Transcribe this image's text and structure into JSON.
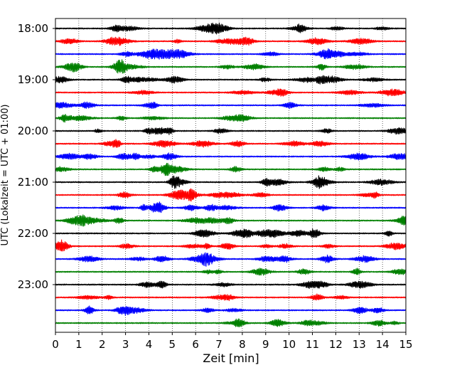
{
  "chart_data": {
    "type": "line",
    "title": "",
    "xlabel": "Zeit  [min]",
    "ylabel": "UTC (Lokalzeit = UTC + 01:00)",
    "xlim": [
      0,
      15
    ],
    "xticks": [
      0,
      1,
      2,
      3,
      4,
      5,
      6,
      7,
      8,
      9,
      10,
      11,
      12,
      13,
      14,
      15
    ],
    "xtick_labels": [
      "0",
      "1",
      "2",
      "3",
      "4",
      "5",
      "6",
      "7",
      "8",
      "9",
      "10",
      "11",
      "12",
      "13",
      "14",
      "15"
    ],
    "ytick_labels": [
      "18:00",
      "19:00",
      "20:00",
      "21:00",
      "22:00",
      "23:00"
    ],
    "row_minutes": 15,
    "start_time": "18:00",
    "grid": "vertical-dotted",
    "colors": [
      "#000000",
      "#ff0000",
      "#0000ff",
      "#008000"
    ],
    "series": [
      {
        "start": "18:00",
        "color": "#000000"
      },
      {
        "start": "18:15",
        "color": "#ff0000"
      },
      {
        "start": "18:30",
        "color": "#0000ff"
      },
      {
        "start": "18:45",
        "color": "#008000"
      },
      {
        "start": "19:00",
        "color": "#000000"
      },
      {
        "start": "19:15",
        "color": "#ff0000"
      },
      {
        "start": "19:30",
        "color": "#0000ff"
      },
      {
        "start": "19:45",
        "color": "#008000"
      },
      {
        "start": "20:00",
        "color": "#000000"
      },
      {
        "start": "20:15",
        "color": "#ff0000"
      },
      {
        "start": "20:30",
        "color": "#0000ff"
      },
      {
        "start": "20:45",
        "color": "#008000"
      },
      {
        "start": "21:00",
        "color": "#000000"
      },
      {
        "start": "21:15",
        "color": "#ff0000"
      },
      {
        "start": "21:30",
        "color": "#0000ff"
      },
      {
        "start": "21:45",
        "color": "#008000"
      },
      {
        "start": "22:00",
        "color": "#000000"
      },
      {
        "start": "22:15",
        "color": "#ff0000"
      },
      {
        "start": "22:30",
        "color": "#0000ff"
      },
      {
        "start": "22:45",
        "color": "#008000"
      },
      {
        "start": "23:00",
        "color": "#000000"
      },
      {
        "start": "23:15",
        "color": "#ff0000"
      },
      {
        "start": "23:30",
        "color": "#0000ff"
      },
      {
        "start": "23:45",
        "color": "#008000"
      }
    ]
  }
}
